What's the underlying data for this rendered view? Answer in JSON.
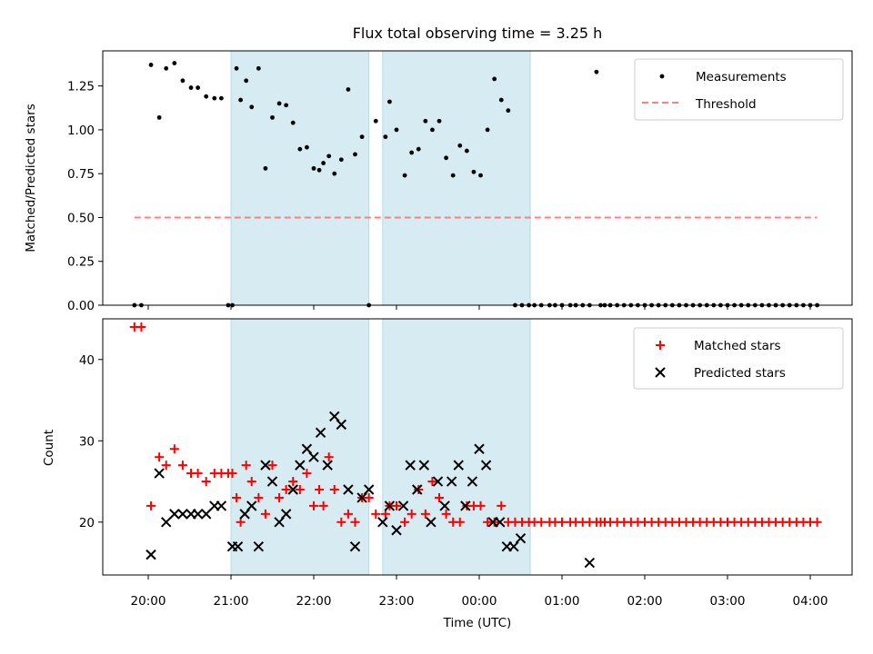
{
  "chart_data": [
    {
      "type": "scatter",
      "title": "Flux total observing time = 3.25 h",
      "xlabel": "",
      "ylabel": "Matched/Predicted stars",
      "ylim": [
        0,
        1.45
      ],
      "yticks": [
        "0.00",
        "0.25",
        "0.50",
        "0.75",
        "1.00",
        "1.25"
      ],
      "legend": {
        "placement": "top-right",
        "entries": [
          "Measurements",
          "Threshold"
        ]
      },
      "threshold": {
        "name": "Threshold",
        "value": 0.5,
        "x_start": "19:50",
        "x_end": "04:05",
        "color": "#ff7f7f"
      },
      "series": [
        {
          "name": "Measurements",
          "color": "#000000",
          "x": [
            "19:50",
            "19:55",
            "20:02",
            "20:08",
            "20:13",
            "20:19",
            "20:25",
            "20:31",
            "20:36",
            "20:42",
            "20:48",
            "20:53",
            "20:58",
            "21:01",
            "21:04",
            "21:07",
            "21:11",
            "21:15",
            "21:20",
            "21:25",
            "21:30",
            "21:35",
            "21:40",
            "21:45",
            "21:50",
            "21:55",
            "22:00",
            "22:04",
            "22:07",
            "22:11",
            "22:15",
            "22:20",
            "22:25",
            "22:30",
            "22:35",
            "22:40",
            "22:45",
            "22:52",
            "22:55",
            "23:00",
            "23:06",
            "23:11",
            "23:16",
            "23:21",
            "23:26",
            "23:31",
            "23:36",
            "23:41",
            "23:46",
            "23:51",
            "23:56",
            "00:01",
            "00:06",
            "00:11",
            "00:16",
            "00:21",
            "00:26",
            "00:31",
            "00:36",
            "00:40",
            "00:45",
            "00:51",
            "00:55",
            "01:00",
            "01:06",
            "01:10",
            "01:15",
            "01:20",
            "01:25",
            "01:28",
            "01:31",
            "01:35",
            "01:40",
            "01:45",
            "01:50",
            "01:55",
            "02:00",
            "02:05",
            "02:10",
            "02:15",
            "02:20",
            "02:25",
            "02:30",
            "02:35",
            "02:40",
            "02:45",
            "02:50",
            "02:55",
            "03:00",
            "03:05",
            "03:10",
            "03:15",
            "03:20",
            "03:25",
            "03:30",
            "03:35",
            "03:40",
            "03:45",
            "03:50",
            "03:55",
            "04:00",
            "04:05"
          ],
          "y": [
            0,
            0,
            1.37,
            1.07,
            1.35,
            1.38,
            1.28,
            1.24,
            1.24,
            1.19,
            1.18,
            1.18,
            0,
            0,
            1.35,
            1.17,
            1.28,
            1.13,
            1.35,
            0.78,
            1.07,
            1.15,
            1.14,
            1.04,
            0.89,
            0.9,
            0.78,
            0.77,
            0.81,
            0.85,
            0.75,
            0.83,
            1.23,
            0.86,
            0.96,
            0,
            1.05,
            0.96,
            1.16,
            1.0,
            0.74,
            0.87,
            0.89,
            1.05,
            1.0,
            1.05,
            0.84,
            0.74,
            0.91,
            0.88,
            0.76,
            0.74,
            1.0,
            1.29,
            1.17,
            1.11,
            0,
            0,
            0,
            0,
            0,
            0,
            0,
            0,
            0,
            0,
            0,
            0,
            1.33,
            0,
            0,
            0,
            0,
            0,
            0,
            0,
            0,
            0,
            0,
            0,
            0,
            0,
            0,
            0,
            0,
            0,
            0,
            0,
            0,
            0,
            0,
            0,
            0,
            0,
            0,
            0,
            0,
            0,
            0,
            0,
            0,
            0
          ]
        }
      ]
    },
    {
      "type": "scatter",
      "title": "",
      "xlabel": "Time (UTC)",
      "ylabel": "Count",
      "ylim": [
        13.5,
        45
      ],
      "yticks": [
        "20",
        "30",
        "40"
      ],
      "xticks": [
        "20:00",
        "21:00",
        "22:00",
        "23:00",
        "00:00",
        "01:00",
        "02:00",
        "03:00",
        "04:00"
      ],
      "legend": {
        "placement": "top-right",
        "entries": [
          "Matched stars",
          "Predicted stars"
        ]
      },
      "series": [
        {
          "name": "Matched stars",
          "color": "#ff0000",
          "marker": "plus",
          "x": [
            "19:50",
            "19:55",
            "20:02",
            "20:08",
            "20:13",
            "20:19",
            "20:25",
            "20:31",
            "20:36",
            "20:42",
            "20:48",
            "20:53",
            "20:58",
            "21:01",
            "21:04",
            "21:07",
            "21:11",
            "21:15",
            "21:20",
            "21:25",
            "21:30",
            "21:35",
            "21:40",
            "21:45",
            "21:50",
            "21:55",
            "22:00",
            "22:04",
            "22:07",
            "22:11",
            "22:15",
            "22:20",
            "22:25",
            "22:30",
            "22:35",
            "22:40",
            "22:45",
            "22:52",
            "22:55",
            "23:00",
            "23:06",
            "23:11",
            "23:16",
            "23:21",
            "23:26",
            "23:31",
            "23:36",
            "23:41",
            "23:46",
            "23:51",
            "23:56",
            "00:01",
            "00:06",
            "00:11",
            "00:16",
            "00:21",
            "00:26",
            "00:31",
            "00:36",
            "00:40",
            "00:45",
            "00:51",
            "00:55",
            "01:00",
            "01:06",
            "01:10",
            "01:15",
            "01:20",
            "01:25",
            "01:28",
            "01:31",
            "01:35",
            "01:40",
            "01:45",
            "01:50",
            "01:55",
            "02:00",
            "02:05",
            "02:10",
            "02:15",
            "02:20",
            "02:25",
            "02:30",
            "02:35",
            "02:40",
            "02:45",
            "02:50",
            "02:55",
            "03:00",
            "03:05",
            "03:10",
            "03:15",
            "03:20",
            "03:25",
            "03:30",
            "03:35",
            "03:40",
            "03:45",
            "03:50",
            "03:55",
            "04:00",
            "04:05"
          ],
          "y": [
            44,
            44,
            22,
            28,
            27,
            29,
            27,
            26,
            26,
            25,
            26,
            26,
            26,
            26,
            23,
            20,
            27,
            25,
            23,
            21,
            27,
            23,
            24,
            25,
            24,
            26,
            22,
            24,
            22,
            28,
            24,
            20,
            21,
            20,
            23,
            23,
            21,
            21,
            22,
            22,
            20,
            21,
            24,
            21,
            25,
            23,
            21,
            20,
            20,
            22,
            22,
            22,
            20,
            20,
            22,
            20,
            20,
            20,
            20,
            20,
            20,
            20,
            20,
            20,
            20,
            20,
            20,
            20,
            20,
            20,
            20,
            20,
            20,
            20,
            20,
            20,
            20,
            20,
            20,
            20,
            20,
            20,
            20,
            20,
            20,
            20,
            20,
            20,
            20,
            20,
            20,
            20,
            20,
            20,
            20,
            20,
            20,
            20,
            20,
            20,
            20,
            20
          ]
        },
        {
          "name": "Predicted stars",
          "color": "#000000",
          "marker": "x",
          "x": [
            "20:02",
            "20:08",
            "20:13",
            "20:19",
            "20:25",
            "20:31",
            "20:36",
            "20:42",
            "20:48",
            "20:53",
            "21:01",
            "21:05",
            "21:10",
            "21:15",
            "21:20",
            "21:25",
            "21:30",
            "21:35",
            "21:40",
            "21:45",
            "21:50",
            "21:55",
            "22:00",
            "22:05",
            "22:10",
            "22:15",
            "22:20",
            "22:25",
            "22:30",
            "22:35",
            "22:40",
            "22:50",
            "22:55",
            "23:00",
            "23:05",
            "23:10",
            "23:15",
            "23:20",
            "23:25",
            "23:30",
            "23:35",
            "23:40",
            "23:45",
            "23:50",
            "23:55",
            "00:00",
            "00:05",
            "00:10",
            "00:15",
            "00:20",
            "00:25",
            "00:30",
            "01:20"
          ],
          "y": [
            16,
            26,
            20,
            21,
            21,
            21,
            21,
            21,
            22,
            22,
            17,
            17,
            21,
            22,
            17,
            27,
            25,
            20,
            21,
            24,
            27,
            29,
            28,
            31,
            27,
            33,
            32,
            24,
            17,
            23,
            24,
            20,
            22,
            19,
            22,
            27,
            24,
            27,
            20,
            25,
            22,
            25,
            27,
            22,
            25,
            29,
            27,
            20,
            20,
            17,
            17,
            18,
            15
          ]
        }
      ],
      "observing_windows": [
        {
          "start": "21:00",
          "end": "22:40",
          "color": "#add8e6"
        },
        {
          "start": "22:50",
          "end": "00:37",
          "color": "#add8e6"
        }
      ]
    }
  ]
}
